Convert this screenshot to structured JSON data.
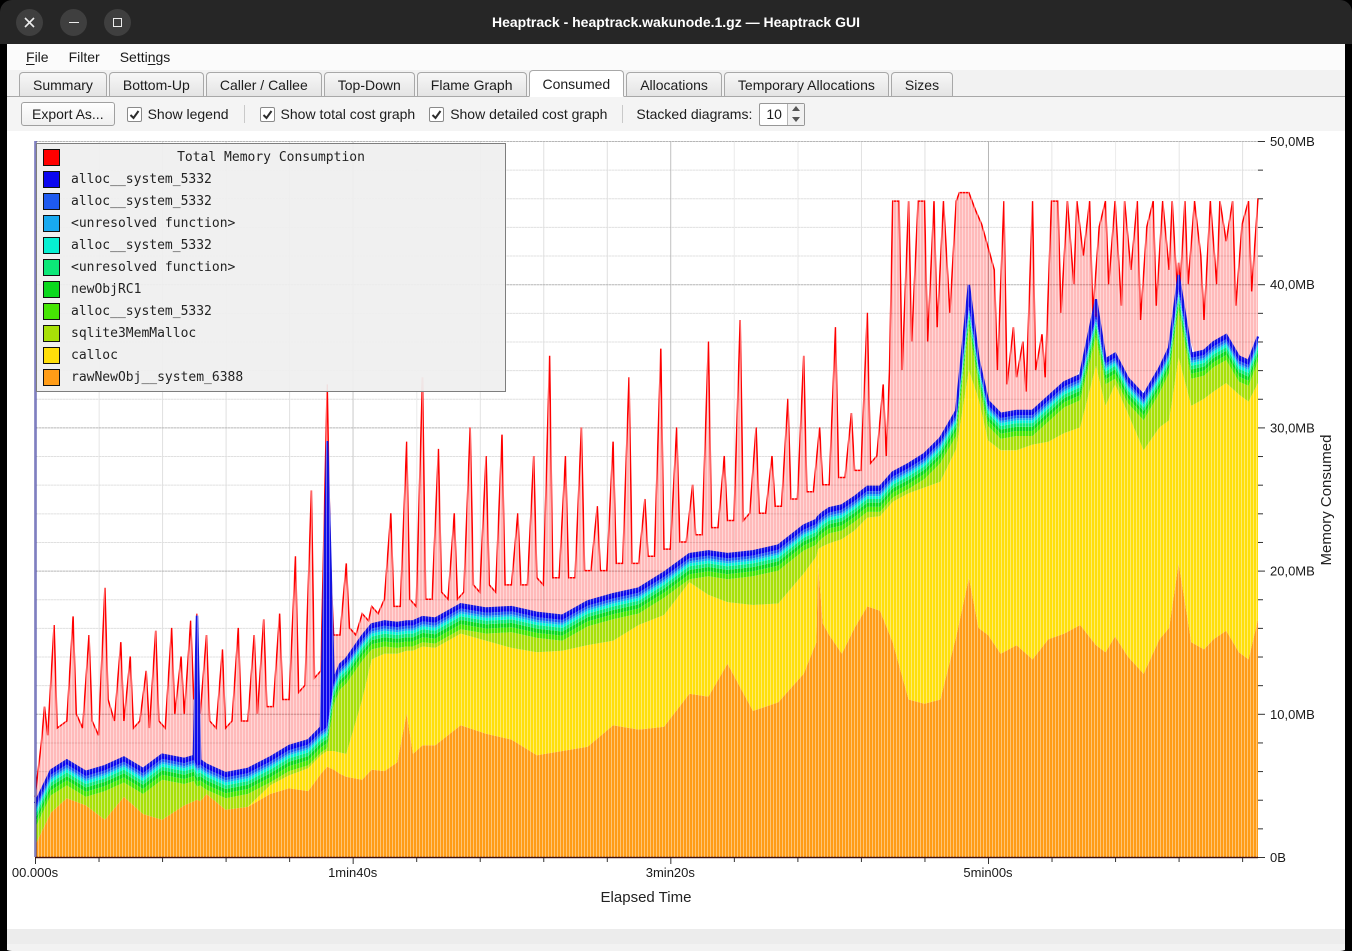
{
  "window": {
    "title": "Heaptrack - heaptrack.wakunode.1.gz — Heaptrack GUI",
    "controls": [
      "close",
      "minimize",
      "maximize"
    ]
  },
  "menu": {
    "items": [
      {
        "label": "File",
        "underline": 0
      },
      {
        "label": "Filter",
        "underline": null
      },
      {
        "label": "Settings",
        "underline": 5
      }
    ]
  },
  "tabs": {
    "active": "Consumed",
    "items": [
      "Summary",
      "Bottom-Up",
      "Caller / Callee",
      "Top-Down",
      "Flame Graph",
      "Consumed",
      "Allocations",
      "Temporary Allocations",
      "Sizes"
    ]
  },
  "toolbar": {
    "export_label": "Export As...",
    "checkboxes": [
      {
        "label": "Show legend",
        "checked": true
      },
      {
        "label": "Show total cost graph",
        "checked": true
      },
      {
        "label": "Show detailed cost graph",
        "checked": true
      }
    ],
    "stacked_label": "Stacked diagrams:",
    "stacked_value": "10"
  },
  "chart_data": {
    "type": "area",
    "stacked": true,
    "title": "Total Memory Consumption",
    "xlabel": "Elapsed Time",
    "ylabel": "Memory Consumed",
    "xlim_s": [
      0,
      385
    ],
    "ylim_mb": [
      0,
      50
    ],
    "x_ticks": [
      {
        "s": 0,
        "label": "00.000s"
      },
      {
        "s": 100,
        "label": "1min40s"
      },
      {
        "s": 200,
        "label": "3min20s"
      },
      {
        "s": 300,
        "label": "5min00s"
      }
    ],
    "x_minor_step_s": 20,
    "y_ticks": [
      {
        "mb": 0,
        "label": "0B"
      },
      {
        "mb": 10,
        "label": "10,0MB"
      },
      {
        "mb": 20,
        "label": "20,0MB"
      },
      {
        "mb": 30,
        "label": "30,0MB"
      },
      {
        "mb": 40,
        "label": "40,0MB"
      },
      {
        "mb": 50,
        "label": "50,0MB"
      }
    ],
    "y_minor_step_mb": 2,
    "grid": {
      "minor_color": "#e0e0e0",
      "major_color": "#b6b6b6",
      "left_axis_color": "#2a2a96",
      "bottom_axis_color": "#401010"
    },
    "legend": [
      {
        "label": "Total Memory Consumption",
        "color": "#ff0000",
        "is_title": true
      },
      {
        "label": "alloc__system_5332",
        "color": "#0b06ef"
      },
      {
        "label": "alloc__system_5332",
        "color": "#1e5af0"
      },
      {
        "label": "<unresolved function>",
        "color": "#18a9f0"
      },
      {
        "label": "alloc__system_5332",
        "color": "#06efd2"
      },
      {
        "label": "<unresolved function>",
        "color": "#0ce878"
      },
      {
        "label": "newObjRC1",
        "color": "#0bd81e"
      },
      {
        "label": "alloc__system_5332",
        "color": "#46e604"
      },
      {
        "label": "sqlite3MemMalloc",
        "color": "#a8e008"
      },
      {
        "label": "calloc",
        "color": "#ffdf0a"
      },
      {
        "label": "rawNewObj__system_6388",
        "color": "#ff9c17"
      }
    ],
    "x": [
      0,
      5,
      10,
      16,
      22,
      28,
      34,
      40,
      47,
      50,
      51,
      52,
      54,
      60,
      67,
      74,
      80,
      86,
      90,
      92,
      94,
      96,
      98,
      103,
      106,
      110,
      114,
      117,
      119,
      122,
      126,
      134,
      142,
      150,
      158,
      166,
      174,
      182,
      190,
      198,
      206,
      212,
      218,
      226,
      234,
      242,
      246,
      246.5,
      248,
      250,
      254,
      258,
      262,
      266,
      270,
      275,
      280,
      285,
      290,
      294,
      297,
      300,
      304,
      309,
      314,
      319,
      324,
      329,
      334,
      337,
      340,
      344,
      349,
      354,
      357,
      360,
      364,
      368,
      371,
      375,
      379,
      382,
      385
    ],
    "series": [
      {
        "name": "rawNewObj__system_6388",
        "color": "#ff9c17",
        "values": [
          0.8,
          3.1,
          4.1,
          3.6,
          2.6,
          4.2,
          3.0,
          2.6,
          3.6,
          3.9,
          4.0,
          3.9,
          4.4,
          3.3,
          3.5,
          4.4,
          4.8,
          4.6,
          5.8,
          6.3,
          6.1,
          5.8,
          5.6,
          5.4,
          6.1,
          6.0,
          6.6,
          10.0,
          7.2,
          7.8,
          7.8,
          9.2,
          8.6,
          8.2,
          7.1,
          7.4,
          7.7,
          9.2,
          8.9,
          9.1,
          11.4,
          11.2,
          13.5,
          10.2,
          10.8,
          12.8,
          15.0,
          20.5,
          16.3,
          15.5,
          14.2,
          16.0,
          17.5,
          17.2,
          15.0,
          11.0,
          10.7,
          11.0,
          15.4,
          19.5,
          16.0,
          15.5,
          14.2,
          14.8,
          13.8,
          15.2,
          15.6,
          16.2,
          14.8,
          14.3,
          15.4,
          14.0,
          12.8,
          15.2,
          16.0,
          20.5,
          15.0,
          14.5,
          15.2,
          15.8,
          14.3,
          13.8,
          16.6
        ]
      },
      {
        "name": "calloc",
        "color": "#ffdf0a",
        "values": [
          0,
          0,
          0,
          0,
          0,
          0,
          0,
          0,
          0,
          0,
          0,
          0,
          0,
          0,
          0,
          0.6,
          0.9,
          1.6,
          1.3,
          1.1,
          1.3,
          1.5,
          1.6,
          5.6,
          7.7,
          8.2,
          7.6,
          4.4,
          7.2,
          6.9,
          6.8,
          6.4,
          6.5,
          6.4,
          7.2,
          7.0,
          7.1,
          5.9,
          7.3,
          7.8,
          7.8,
          7.1,
          4.3,
          7.4,
          6.9,
          7.0,
          6.0,
          1.0,
          5.4,
          6.4,
          8.0,
          6.8,
          6.2,
          6.6,
          9.8,
          14.4,
          15.1,
          15.2,
          13.1,
          14.5,
          16.0,
          13.6,
          14.2,
          13.6,
          15.0,
          13.8,
          14.0,
          13.8,
          19.5,
          17.2,
          17.6,
          17.0,
          15.6,
          14.8,
          14.5,
          14.4,
          16.5,
          17.5,
          17.3,
          17.3,
          18.0,
          18.0,
          16.5
        ]
      },
      {
        "name": "sqlite3MemMalloc",
        "color": "#a8e008",
        "values": [
          1.2,
          1.2,
          0.9,
          0.6,
          2.0,
          1.0,
          1.4,
          2.8,
          1.5,
          1.4,
          0.9,
          1.1,
          0.3,
          0.8,
          0.9,
          0.2,
          0.3,
          0.2,
          0.2,
          0.2,
          3.2,
          4.4,
          4.9,
          2.7,
          0.7,
          0.5,
          0.4,
          0.3,
          0.3,
          0.3,
          0.3,
          0.3,
          0.5,
          1.1,
          1.0,
          0.7,
          1.3,
          1.5,
          0.8,
          1.2,
          0.2,
          1.3,
          1.6,
          2.0,
          2.3,
          1.6,
          0.8,
          0.5,
          0.6,
          0.7,
          0.6,
          0.6,
          0.4,
          0.3,
          0.3,
          0.3,
          0.6,
          1.3,
          0.9,
          3.0,
          1.0,
          1.0,
          0.8,
          1.0,
          0.6,
          1.4,
          1.8,
          1.9,
          2.0,
          1.5,
          0.4,
          0.7,
          2.1,
          2.4,
          3.3,
          3.3,
          1.9,
          1.6,
          1.7,
          1.6,
          0.9,
          1.1,
          1.5
        ]
      },
      {
        "name": "alloc__system_5332",
        "color": "#46e604",
        "height": 0.35
      },
      {
        "name": "newObjRC1",
        "color": "#0bd81e",
        "height": 0.3
      },
      {
        "name": "<unresolved function>",
        "color": "#0ce878",
        "height": 0.25
      },
      {
        "name": "alloc__system_5332",
        "color": "#06efd2",
        "height": 0.2
      },
      {
        "name": "<unresolved function>",
        "color": "#18a9f0",
        "height": 0.15
      },
      {
        "name": "alloc__system_5332",
        "color": "#1e5af0",
        "height": 0.2
      },
      {
        "name": "alloc__system_5332",
        "color": "#0b06ef",
        "values": [
          0.3,
          0.3,
          0.3,
          0.3,
          0.3,
          0.3,
          0.3,
          0.3,
          0.3,
          0.3,
          10.5,
          0.3,
          0.3,
          0.3,
          0.3,
          0.3,
          0.3,
          0.3,
          0.3,
          20.0,
          0.3,
          0.3,
          0.3,
          0.3,
          0.3,
          0.3,
          0.3,
          0.3,
          0.3,
          0.3,
          0.3,
          0.3,
          0.3,
          0.3,
          0.3,
          0.3,
          0.3,
          0.3,
          0.3,
          0.3,
          0.3,
          0.3,
          0.3,
          0.3,
          0.3,
          0.3,
          0.3,
          0.3,
          0.3,
          0.3,
          0.3,
          0.3,
          0.3,
          0.3,
          0.3,
          0.3,
          0.3,
          0.3,
          0.3,
          1.5,
          0.3,
          0.3,
          0.3,
          0.3,
          0.3,
          0.3,
          0.3,
          0.3,
          1.2,
          0.3,
          0.3,
          0.3,
          0.3,
          0.3,
          0.3,
          1.0,
          0.3,
          0.3,
          0.3,
          0.3,
          0.3,
          0.3,
          0.3
        ]
      }
    ],
    "total": {
      "name": "Total Memory Consumption",
      "color": "#ff0000",
      "fill": "rgba(255,0,0,0.27)",
      "x": [
        0,
        2,
        3,
        4,
        6,
        7,
        10,
        12,
        13,
        15,
        17,
        18,
        20,
        22,
        23,
        25,
        27,
        28,
        30,
        31,
        33,
        35,
        36,
        38,
        39,
        41,
        43,
        44,
        46,
        47,
        49,
        50,
        50.5,
        51,
        51.5,
        52,
        54,
        55,
        57,
        59,
        60,
        62,
        64,
        65,
        67,
        69,
        70,
        72,
        73,
        75,
        77,
        78,
        80,
        82,
        83,
        85,
        87,
        88,
        90,
        92,
        93,
        94,
        96,
        98,
        99,
        101,
        103,
        105,
        106,
        108,
        110,
        112,
        113,
        115,
        117,
        118,
        120,
        122,
        123,
        125,
        127,
        128,
        130,
        132,
        133,
        135,
        137,
        138,
        140,
        142,
        143,
        145,
        147,
        148,
        150,
        152,
        153,
        155,
        157,
        158,
        160,
        162,
        163,
        165,
        167,
        168,
        170,
        172,
        173,
        175,
        177,
        178,
        180,
        182,
        183,
        185,
        187,
        188,
        190,
        192,
        193,
        195,
        197,
        198,
        200,
        202,
        203,
        205,
        207,
        208,
        210,
        212,
        213,
        215,
        217,
        218,
        220,
        222,
        223,
        225,
        227,
        228,
        230,
        232,
        233,
        235,
        237,
        238,
        240,
        242,
        243,
        245,
        247,
        248,
        250,
        252,
        253,
        255,
        257,
        258,
        260,
        262,
        263,
        265,
        267,
        268,
        269,
        270,
        272,
        273,
        275,
        276,
        278,
        280,
        281,
        283,
        284,
        286,
        288,
        290,
        291,
        294,
        296,
        298,
        300,
        302,
        303,
        305,
        306,
        308,
        309,
        311,
        312,
        314,
        315,
        317,
        318,
        320,
        322,
        323,
        325,
        327,
        328,
        330,
        332,
        333,
        335,
        337,
        338,
        340,
        342,
        343,
        345,
        347,
        348,
        350,
        352,
        353,
        355,
        357,
        358,
        359.5,
        360,
        360.5,
        362,
        363,
        365,
        367,
        368,
        370,
        372,
        373,
        375,
        377,
        378,
        380,
        382,
        383,
        385
      ],
      "values": [
        4.2,
        8,
        10.5,
        8.5,
        16.2,
        9,
        9.5,
        16.8,
        10,
        9,
        15.5,
        9.5,
        8.5,
        18.8,
        11,
        9.5,
        15,
        9.5,
        14,
        9,
        9.5,
        13,
        9,
        15.8,
        9.5,
        9,
        16,
        10,
        14,
        10,
        16.5,
        11,
        11,
        17,
        11,
        10,
        15.5,
        9.5,
        9,
        14.5,
        9,
        9.5,
        16,
        9.5,
        9.5,
        15.5,
        10,
        16.6,
        10.5,
        10.5,
        17,
        11,
        11,
        21,
        11.5,
        12,
        25.6,
        12.5,
        13,
        33,
        16,
        15.5,
        15.5,
        20.5,
        16,
        15.5,
        17,
        16.5,
        17.5,
        17,
        18,
        24,
        17.5,
        17.5,
        29,
        18,
        17.5,
        33.5,
        18,
        18,
        28.5,
        18.5,
        18,
        24,
        18,
        18.5,
        30,
        19,
        18.5,
        28,
        19,
        18.5,
        29.5,
        19,
        19,
        24,
        19,
        19,
        28,
        19.5,
        19,
        35,
        19.5,
        19.5,
        28,
        19.5,
        19.5,
        30,
        20,
        20,
        24.5,
        20,
        20,
        29,
        20.5,
        20.5,
        33.5,
        20.5,
        20.5,
        25,
        21,
        21,
        35.5,
        21.5,
        21.5,
        30,
        22,
        22,
        26,
        22.5,
        22.5,
        36,
        23,
        23,
        28,
        23.5,
        23.5,
        37.5,
        23.5,
        24,
        30,
        24,
        24,
        28,
        24.5,
        24.5,
        32,
        25,
        25,
        35,
        25.5,
        25.5,
        30,
        26,
        26,
        37,
        26.5,
        26.5,
        31,
        27,
        27,
        38,
        27.5,
        28,
        33,
        28,
        34,
        45.8,
        45.8,
        34,
        45.8,
        36,
        45.8,
        45.8,
        36,
        45.8,
        37,
        45.8,
        38,
        45.8,
        46.4,
        46.4,
        45.2,
        44.2,
        42.6,
        41,
        34,
        45.8,
        33,
        37,
        33.5,
        36,
        32.5,
        45.8,
        34,
        36.5,
        33.5,
        45.8,
        45.8,
        38,
        45.8,
        40,
        45.8,
        42,
        45.8,
        38,
        44,
        45.8,
        40,
        45.8,
        38.5,
        45.8,
        41,
        45.8,
        37.5,
        44,
        45.8,
        38.5,
        45.8,
        41,
        45.8,
        39,
        41.5,
        39,
        45.8,
        40,
        45.8,
        42,
        37.5,
        45.8,
        40,
        45.8,
        43,
        45.8,
        38.5,
        44.2,
        45.8,
        39.5,
        46
      ]
    },
    "top_line_color": "#1414e0"
  }
}
